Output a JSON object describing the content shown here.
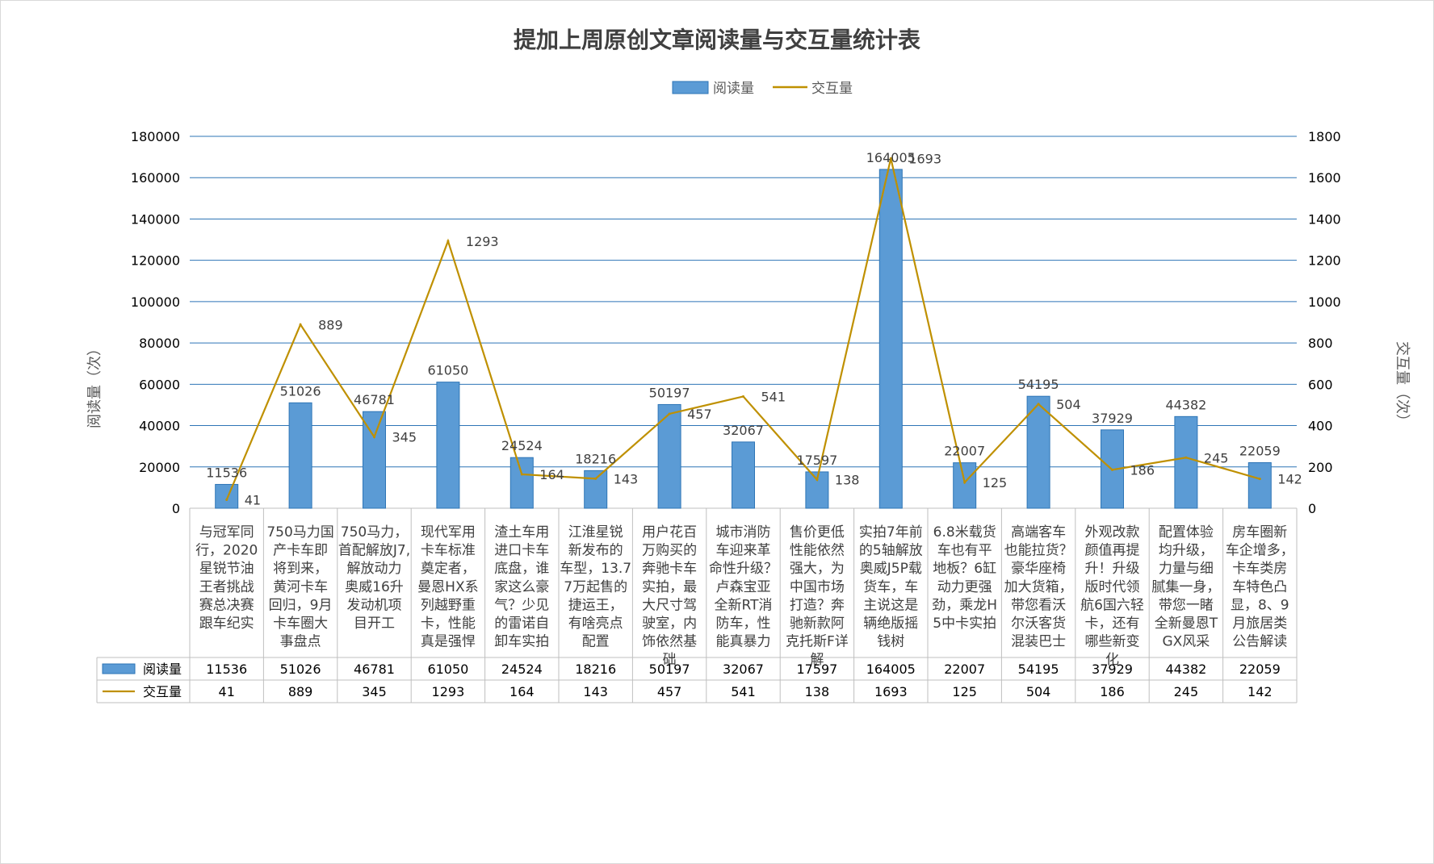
{
  "chart_data": {
    "type": "bar+line",
    "title": "提加上周原创文章阅读量与交互量统计表",
    "legend": [
      "阅读量",
      "交互量"
    ],
    "legend_position": "top",
    "ylabel_left": "阅读量（次）",
    "ylabel_right": "交互量（次）",
    "ylim_left": [
      0,
      180000
    ],
    "ylim_right": [
      0,
      1800
    ],
    "yticks_left": [
      "0",
      "20000",
      "40000",
      "60000",
      "80000",
      "100000",
      "120000",
      "140000",
      "160000",
      "180000"
    ],
    "yticks_right": [
      "0",
      "200",
      "400",
      "600",
      "800",
      "1000",
      "1200",
      "1400",
      "1600",
      "1800"
    ],
    "grid": true,
    "colors": {
      "bar": "#5b9bd5",
      "bar_dark": "#2e75b6",
      "line": "#bf9000",
      "grid": "#2e75b6"
    },
    "categories": [
      [
        "与冠军同",
        "行，2020",
        "星锐节油",
        "王者挑战",
        "赛总决赛",
        "跟车纪实"
      ],
      [
        "750马力国",
        "产卡车即",
        "将到来，",
        "黄河卡车",
        "回归，9月",
        "卡车圈大",
        "事盘点"
      ],
      [
        "750马力，",
        "首配解放J7,",
        "解放动力",
        "奥威16升",
        "发动机项",
        "目开工"
      ],
      [
        "现代军用",
        "卡车标准",
        "奠定者，",
        "曼恩HX系",
        "列越野重",
        "卡，性能",
        "真是强悍"
      ],
      [
        "渣土车用",
        "进口卡车",
        "底盘，谁",
        "家这么豪",
        "气？少见",
        "的雷诺自",
        "卸车实拍"
      ],
      [
        "江淮星锐",
        "新发布的",
        "车型，13.7",
        "7万起售的",
        "捷运王，",
        "有啥亮点",
        "配置"
      ],
      [
        "用户花百",
        "万购买的",
        "奔驰卡车",
        "实拍，最",
        "大尺寸驾",
        "驶室，内",
        "饰依然基",
        "础"
      ],
      [
        "城市消防",
        "车迎来革",
        "命性升级？",
        "卢森宝亚",
        "全新RT消",
        "防车，性",
        "能真暴力"
      ],
      [
        "售价更低",
        "性能依然",
        "强大，为",
        "中国市场",
        "打造？奔",
        "驰新款阿",
        "克托斯F详",
        "解"
      ],
      [
        "实拍7年前",
        "的5轴解放",
        "奥威J5P载",
        "货车，车",
        "主说这是",
        "辆绝版摇",
        "钱树"
      ],
      [
        "6.8米载货",
        "车也有平",
        "地板？6缸",
        "动力更强",
        "劲，乘龙H",
        "5中卡实拍"
      ],
      [
        "高端客车",
        "也能拉货？",
        "豪华座椅",
        "加大货箱，",
        "带您看沃",
        "尔沃客货",
        "混装巴士"
      ],
      [
        "外观改款",
        "颜值再提",
        "升！升级",
        "版时代领",
        "航6国六轻",
        "卡，还有",
        "哪些新变",
        "化"
      ],
      [
        "配置体验",
        "均升级，",
        "力量与细",
        "腻集一身，",
        "带您一睹",
        "全新曼恩T",
        "GX风采"
      ],
      [
        "房车圈新",
        "车企增多，",
        "卡车类房",
        "车特色凸",
        "显，8、9",
        "月旅居类",
        "公告解读"
      ]
    ],
    "series": [
      {
        "name": "阅读量",
        "type": "bar",
        "axis": "left",
        "values": [
          11536,
          51026,
          46781,
          61050,
          24524,
          18216,
          50197,
          32067,
          17597,
          164005,
          22007,
          54195,
          37929,
          44382,
          22059
        ],
        "labels": [
          "11536",
          "51026",
          "46781",
          "61050",
          "24524",
          "18216",
          "50197",
          "32067",
          "17597",
          "164005",
          "22007",
          "54195",
          "37929",
          "44382",
          "22059"
        ]
      },
      {
        "name": "交互量",
        "type": "line",
        "axis": "right",
        "values": [
          41,
          889,
          345,
          1293,
          164,
          143,
          457,
          541,
          138,
          1693,
          125,
          504,
          186,
          245,
          142
        ],
        "labels": [
          "41",
          "889",
          "345",
          "1293",
          "164",
          "143",
          "457",
          "541",
          "138",
          "1693",
          "125",
          "504",
          "186",
          "245",
          "142"
        ]
      }
    ]
  }
}
